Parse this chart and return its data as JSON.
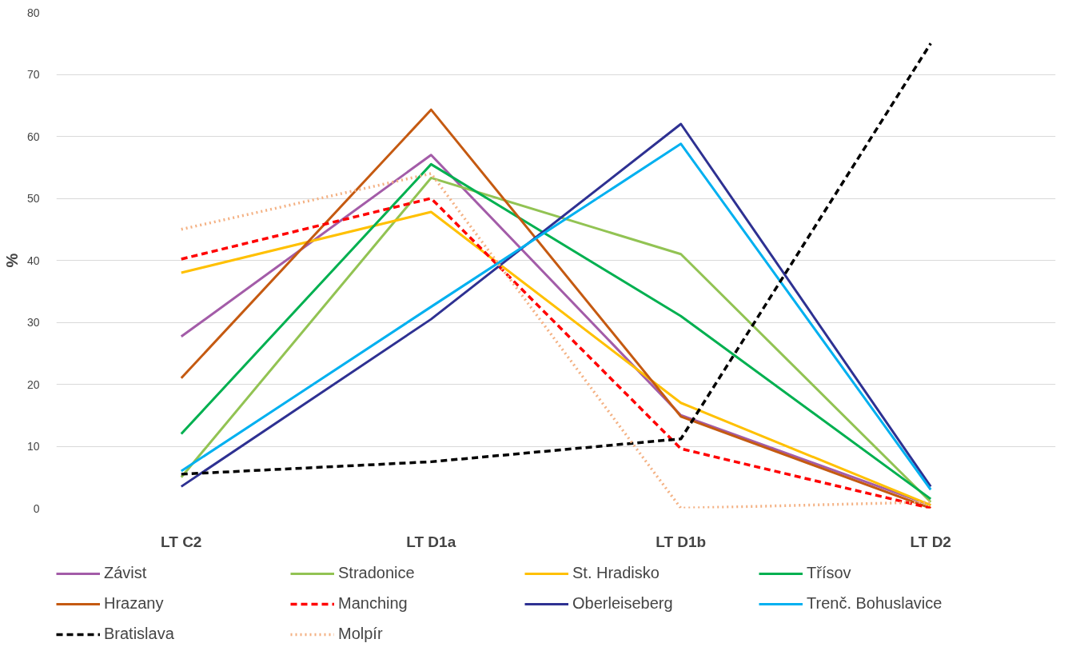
{
  "chart_data": {
    "type": "line",
    "ylabel": "%",
    "categories": [
      "LT C2",
      "LT D1a",
      "LT D1b",
      "LT D2"
    ],
    "ylim": [
      0,
      80
    ],
    "yticks": [
      0,
      10,
      20,
      30,
      40,
      50,
      60,
      70,
      80
    ],
    "grid": "y",
    "legend": "bottom",
    "marker": "none",
    "series": [
      {
        "name": "Závist",
        "color": "#a35ca8",
        "values": [
          27.7,
          57,
          15,
          0.5
        ]
      },
      {
        "name": "Stradonice",
        "color": "#92c353",
        "values": [
          5,
          53.3,
          41,
          1
        ]
      },
      {
        "name": "St. Hradisko",
        "color": "#ffc000",
        "values": [
          38,
          47.8,
          17,
          0.5
        ]
      },
      {
        "name": "Třísov",
        "color": "#00b050",
        "values": [
          12,
          55.5,
          31,
          1.5
        ]
      },
      {
        "name": "Hrazany",
        "color": "#c55a11",
        "values": [
          21,
          64.3,
          14.8,
          0
        ]
      },
      {
        "name": "Manching",
        "color": "#ff0000",
        "values": [
          40.2,
          50,
          9.6,
          0
        ],
        "line_style": "dashed"
      },
      {
        "name": "Oberleiseberg",
        "color": "#2e3192",
        "values": [
          3.5,
          30.5,
          62,
          3.5
        ]
      },
      {
        "name": "Trenč. Bohuslavice",
        "color": "#00b0f0",
        "values": [
          6,
          32.5,
          58.8,
          3
        ]
      },
      {
        "name": "Bratislava",
        "color": "#000000",
        "values": [
          5.5,
          7.5,
          11.2,
          75
        ],
        "line_style": "dashed"
      },
      {
        "name": "Molpír",
        "color": "#f4b183",
        "values": [
          45,
          54,
          0,
          1
        ],
        "line_style": "dotted"
      }
    ]
  }
}
